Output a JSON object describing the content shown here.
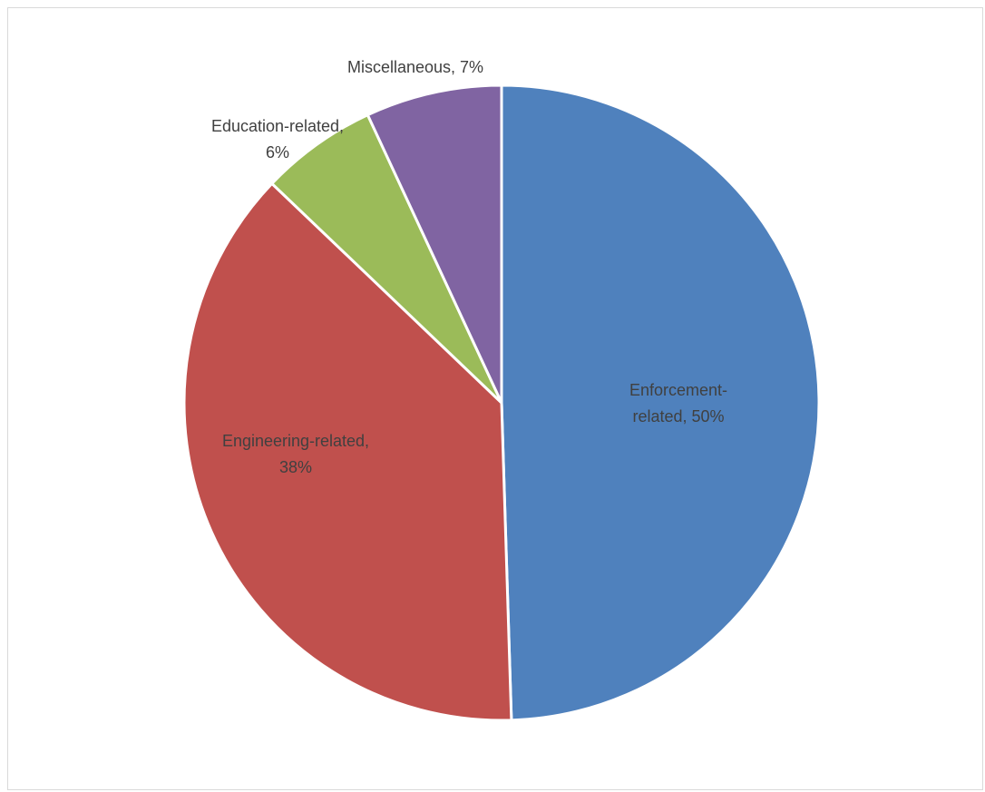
{
  "chart_data": {
    "type": "pie",
    "title": "",
    "slices": [
      {
        "label": "Enforcement-related",
        "value": 50,
        "value_label": "50%",
        "color": "#4f81bd",
        "label_color": "#404040",
        "label_lines": [
          "Enforcement-",
          "related, 50%"
        ]
      },
      {
        "label": "Engineering-related",
        "value": 38,
        "value_label": "38%",
        "color": "#c0504d",
        "label_color": "#404040",
        "label_lines": [
          "Engineering-related,",
          "38%"
        ]
      },
      {
        "label": "Education-related",
        "value": 6,
        "value_label": "6%",
        "color": "#9bbb59",
        "label_color": "#404040",
        "label_lines": [
          "Education-related,",
          "6%"
        ]
      },
      {
        "label": "Miscellaneous",
        "value": 7,
        "value_label": "7%",
        "color": "#8064a2",
        "label_color": "#404040",
        "label_lines": [
          "Miscellaneous, 7%"
        ]
      }
    ],
    "start_angle_deg": 0,
    "direction": "clockwise",
    "legend": "none",
    "data_labels": "category-and-percent"
  }
}
